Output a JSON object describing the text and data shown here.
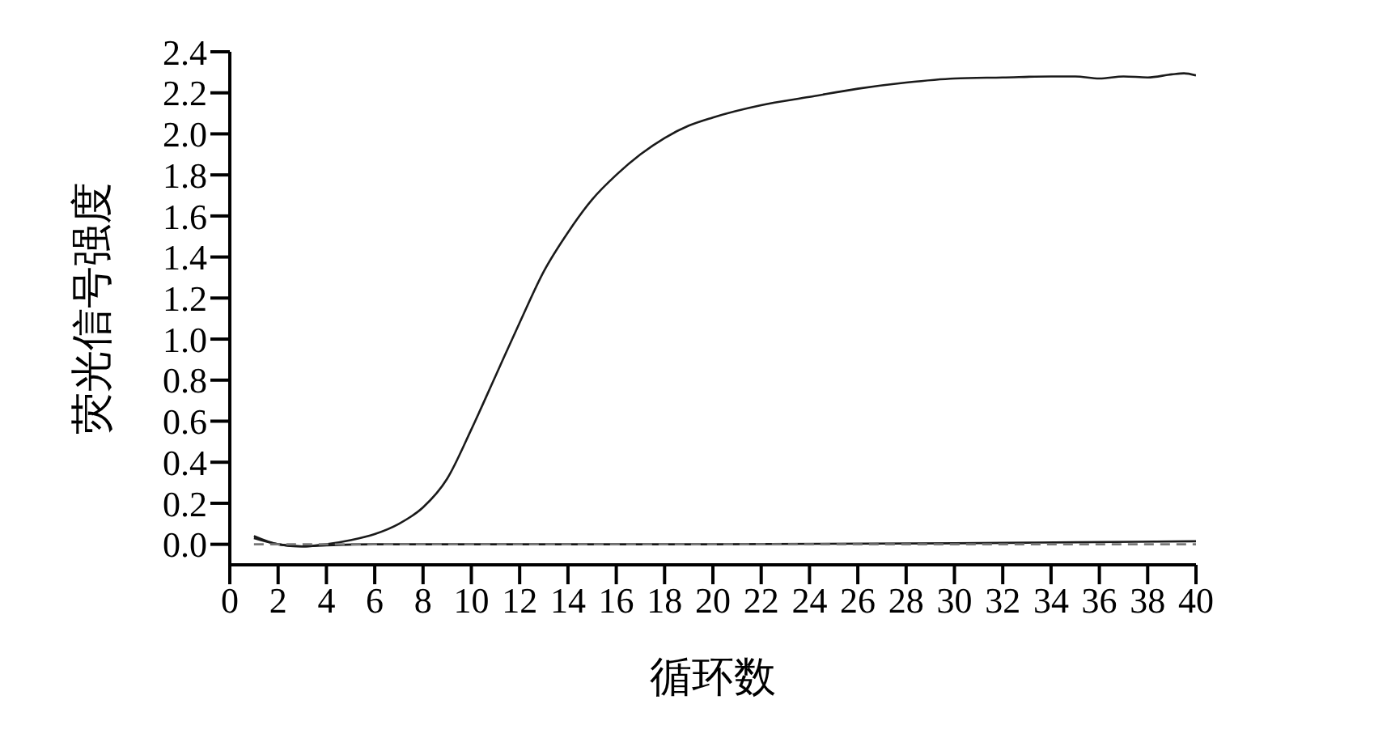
{
  "chart_data": {
    "type": "line",
    "xlabel": "循环数",
    "ylabel": "荧光信号强度",
    "xlim": [
      0,
      40
    ],
    "xticks": [
      0,
      2,
      4,
      6,
      8,
      10,
      12,
      14,
      16,
      18,
      20,
      22,
      24,
      26,
      28,
      30,
      32,
      34,
      36,
      38,
      40
    ],
    "ylim": [
      -0.1,
      2.4
    ],
    "yticks": [
      {
        "value": 0,
        "label": "0.0"
      },
      0.2,
      0.4,
      0.6,
      0.8,
      {
        "value": 1,
        "label": "1.0"
      },
      1.2,
      1.4,
      1.6,
      1.8,
      {
        "value": 2,
        "label": "2.0"
      },
      2.2,
      2.4
    ],
    "series": [
      {
        "color": "#1a1a1a",
        "line_style": "solid",
        "x": [
          1,
          2,
          3,
          4,
          5,
          6,
          7,
          8,
          9,
          10,
          11,
          12,
          13,
          14,
          15,
          16,
          17,
          18,
          19,
          20,
          22,
          24,
          26,
          28,
          30,
          32,
          34,
          35,
          36,
          37,
          38,
          39,
          39.5,
          40
        ],
        "values": [
          0.04,
          0.0,
          -0.01,
          0.0,
          0.02,
          0.05,
          0.1,
          0.18,
          0.32,
          0.56,
          0.82,
          1.08,
          1.33,
          1.52,
          1.68,
          1.8,
          1.9,
          1.98,
          2.04,
          2.08,
          2.14,
          2.18,
          2.22,
          2.25,
          2.27,
          2.275,
          2.28,
          2.28,
          2.27,
          2.28,
          2.275,
          2.29,
          2.295,
          2.285
        ]
      },
      {
        "color": "#1a1a1a",
        "line_style": "solid",
        "x": [
          1,
          2,
          3,
          4,
          6,
          10,
          20,
          30,
          35,
          40
        ],
        "values": [
          0.03,
          0.0,
          -0.01,
          -0.005,
          0.0,
          0.0,
          0.0,
          0.005,
          0.01,
          0.015
        ]
      },
      {
        "color": "#777777",
        "line_style": "dashed",
        "x": [
          1,
          40
        ],
        "values": [
          0,
          0
        ]
      }
    ]
  }
}
